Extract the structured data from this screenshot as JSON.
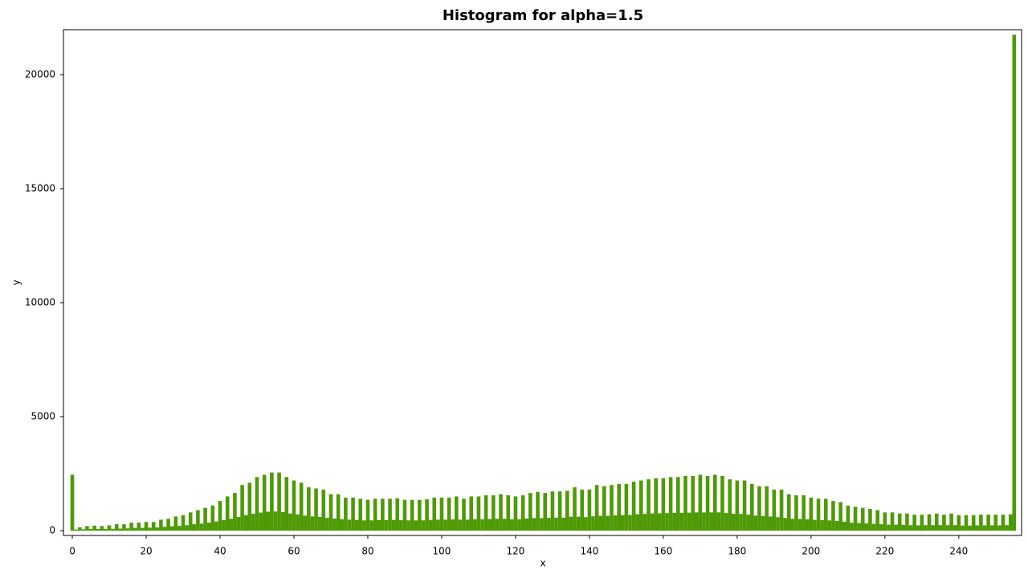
{
  "chart_data": {
    "type": "bar",
    "title": "Histogram for alpha=1.5",
    "x_label": "x",
    "y_label": "y",
    "color": "#4e9a06",
    "x": [
      0,
      1,
      2,
      3,
      4,
      5,
      6,
      7,
      8,
      9,
      10,
      11,
      12,
      13,
      14,
      15,
      16,
      17,
      18,
      19,
      20,
      21,
      22,
      23,
      24,
      25,
      26,
      27,
      28,
      29,
      30,
      31,
      32,
      33,
      34,
      35,
      36,
      37,
      38,
      39,
      40,
      41,
      42,
      43,
      44,
      45,
      46,
      47,
      48,
      49,
      50,
      51,
      52,
      53,
      54,
      55,
      56,
      57,
      58,
      59,
      60,
      61,
      62,
      63,
      64,
      65,
      66,
      67,
      68,
      69,
      70,
      71,
      72,
      73,
      74,
      75,
      76,
      77,
      78,
      79,
      80,
      81,
      82,
      83,
      84,
      85,
      86,
      87,
      88,
      89,
      90,
      91,
      92,
      93,
      94,
      95,
      96,
      97,
      98,
      99,
      100,
      101,
      102,
      103,
      104,
      105,
      106,
      107,
      108,
      109,
      110,
      111,
      112,
      113,
      114,
      115,
      116,
      117,
      118,
      119,
      120,
      121,
      122,
      123,
      124,
      125,
      126,
      127,
      128,
      129,
      130,
      131,
      132,
      133,
      134,
      135,
      136,
      137,
      138,
      139,
      140,
      141,
      142,
      143,
      144,
      145,
      146,
      147,
      148,
      149,
      150,
      151,
      152,
      153,
      154,
      155,
      156,
      157,
      158,
      159,
      160,
      161,
      162,
      163,
      164,
      165,
      166,
      167,
      168,
      169,
      170,
      171,
      172,
      173,
      174,
      175,
      176,
      177,
      178,
      179,
      180,
      181,
      182,
      183,
      184,
      185,
      186,
      187,
      188,
      189,
      190,
      191,
      192,
      193,
      194,
      195,
      196,
      197,
      198,
      199,
      200,
      201,
      202,
      203,
      204,
      205,
      206,
      207,
      208,
      209,
      210,
      211,
      212,
      213,
      214,
      215,
      216,
      217,
      218,
      219,
      220,
      221,
      222,
      223,
      224,
      225,
      226,
      227,
      228,
      229,
      230,
      231,
      232,
      233,
      234,
      235,
      236,
      237,
      238,
      239,
      240,
      241,
      242,
      243,
      244,
      245,
      246,
      247,
      248,
      249,
      250,
      251,
      252,
      253,
      254,
      255
    ],
    "values": [
      2450,
      50,
      150,
      60,
      200,
      70,
      220,
      70,
      200,
      70,
      230,
      80,
      280,
      90,
      280,
      100,
      350,
      120,
      350,
      120,
      380,
      130,
      380,
      140,
      480,
      170,
      520,
      190,
      620,
      210,
      680,
      240,
      800,
      280,
      900,
      310,
      1000,
      350,
      1100,
      400,
      1300,
      460,
      1500,
      520,
      1650,
      600,
      2000,
      680,
      2100,
      740,
      2350,
      790,
      2450,
      830,
      2550,
      840,
      2550,
      810,
      2350,
      750,
      2200,
      710,
      2100,
      660,
      1900,
      620,
      1850,
      600,
      1800,
      560,
      1600,
      530,
      1600,
      500,
      1450,
      480,
      1450,
      470,
      1400,
      450,
      1350,
      450,
      1400,
      460,
      1400,
      460,
      1400,
      470,
      1420,
      460,
      1350,
      450,
      1350,
      450,
      1350,
      450,
      1380,
      470,
      1450,
      480,
      1450,
      480,
      1450,
      490,
      1500,
      480,
      1400,
      480,
      1500,
      500,
      1500,
      500,
      1550,
      510,
      1550,
      520,
      1600,
      520,
      1550,
      500,
      1500,
      500,
      1550,
      530,
      1650,
      550,
      1700,
      550,
      1650,
      560,
      1720,
      570,
      1720,
      570,
      1750,
      610,
      1900,
      610,
      1800,
      590,
      1800,
      630,
      2000,
      650,
      1950,
      650,
      2000,
      670,
      2050,
      680,
      2050,
      690,
      2150,
      720,
      2200,
      730,
      2250,
      750,
      2300,
      760,
      2300,
      770,
      2350,
      780,
      2350,
      780,
      2400,
      790,
      2400,
      800,
      2450,
      800,
      2400,
      800,
      2450,
      800,
      2400,
      770,
      2250,
      740,
      2200,
      730,
      2200,
      700,
      2050,
      660,
      1950,
      640,
      1950,
      620,
      1800,
      590,
      1800,
      560,
      1600,
      520,
      1550,
      510,
      1550,
      500,
      1450,
      470,
      1400,
      460,
      1400,
      450,
      1300,
      420,
      1250,
      390,
      1100,
      350,
      1050,
      340,
      1000,
      320,
      950,
      300,
      900,
      280,
      800,
      260,
      800,
      260,
      750,
      250,
      750,
      240,
      700,
      230,
      700,
      240,
      720,
      240,
      750,
      240,
      700,
      240,
      750,
      240,
      680,
      220,
      680,
      220,
      680,
      230,
      700,
      230,
      700,
      230,
      700,
      230,
      700,
      240,
      720,
      21750
    ],
    "xlim": [
      -2.4,
      257
    ],
    "ylim": [
      -211,
      21972
    ],
    "xticks": [
      0,
      20,
      40,
      60,
      80,
      100,
      120,
      140,
      160,
      180,
      200,
      220,
      240
    ],
    "yticks": [
      0,
      5000,
      10000,
      15000,
      20000
    ]
  }
}
